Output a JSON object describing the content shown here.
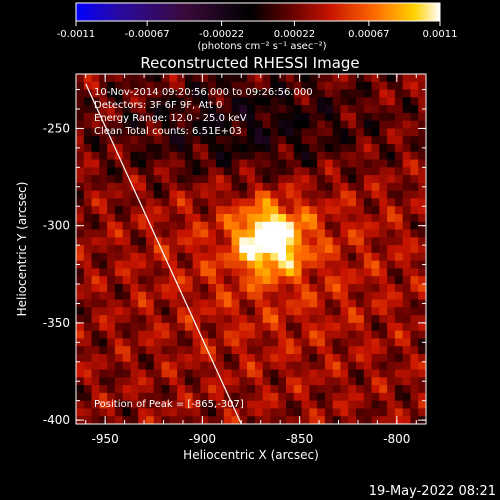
{
  "chart_data": {
    "type": "heatmap",
    "title": "Reconstructed RHESSI Image",
    "xlabel": "Heliocentric X (arcsec)",
    "ylabel": "Heliocentric Y (arcsec)",
    "xlim": [
      -965,
      -785
    ],
    "ylim": [
      -402,
      -222
    ],
    "x_ticks": [
      -950,
      -900,
      -850,
      -800
    ],
    "y_ticks": [
      -250,
      -300,
      -350,
      -400
    ],
    "x_tick_labels": [
      "-950",
      "-900",
      "-850",
      "-800"
    ],
    "y_tick_labels": [
      "-250",
      "-300",
      "-350",
      "-400"
    ],
    "colorbar": {
      "ticks": [
        -0.0011,
        -0.00067,
        -0.00022,
        0.00022,
        0.00067,
        0.0011
      ],
      "tick_labels": [
        "-0.0011",
        "-0.00067",
        "-0.00022",
        "0.00022",
        "0.00067",
        "0.0011"
      ],
      "range": [
        -0.0011,
        0.0011
      ],
      "units": "(photons cm⁻² s⁻¹ asec⁻²)"
    },
    "annotations": {
      "time_range": "10-Nov-2014 09:20:56.000 to 09:26:56.000",
      "detectors": "Detectors: 3F 6F 9F, Att 0",
      "energy": "Energy Range: 12.0 - 25.0 keV",
      "clean": "Clean     Total counts: 6.51E+03",
      "peak": "Position of Peak = [-865,-307]"
    },
    "peak": {
      "x": -865,
      "y": -307
    },
    "limb_line": {
      "x": [
        -960,
        -880
      ],
      "y": [
        -227,
        -402
      ]
    },
    "grid": false
  },
  "footer": {
    "timestamp": "19-May-2022 08:21"
  }
}
